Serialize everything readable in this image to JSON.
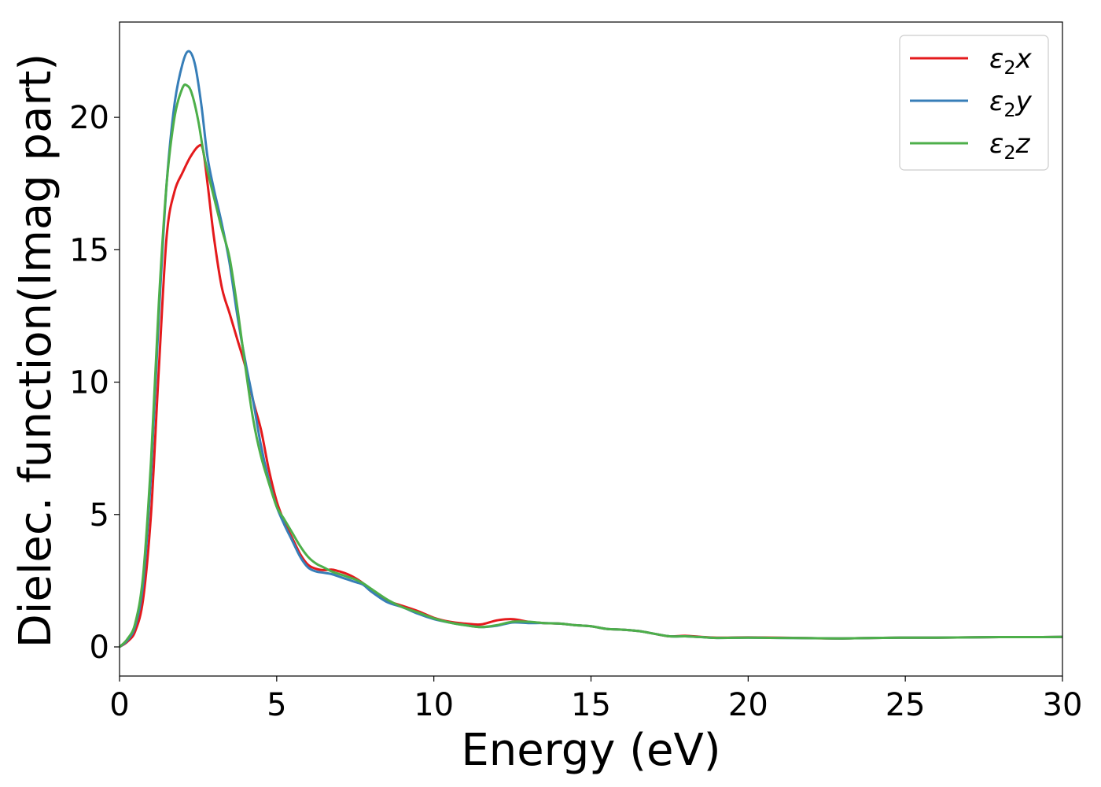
{
  "chart_data": {
    "type": "line",
    "title": "",
    "xlabel": "Energy (eV)",
    "ylabel": "Dielec. function(Imag part)",
    "xlim": [
      0,
      30
    ],
    "ylim": [
      -1.1,
      23.6
    ],
    "xticks": [
      0,
      5,
      10,
      15,
      20,
      25,
      30
    ],
    "yticks": [
      0,
      5,
      10,
      15,
      20
    ],
    "grid": false,
    "legend_position": "top-right",
    "series": [
      {
        "name": "ε2x",
        "legend_base": "ε",
        "legend_sub": "2",
        "legend_suffix": "x",
        "color": "#e41a1c",
        "x": [
          0,
          0.25,
          0.5,
          0.75,
          1.0,
          1.25,
          1.5,
          1.75,
          2.0,
          2.25,
          2.5,
          2.65,
          2.8,
          3.0,
          3.25,
          3.5,
          3.75,
          4.0,
          4.25,
          4.5,
          4.75,
          5.0,
          5.25,
          5.5,
          5.75,
          6.0,
          6.25,
          6.5,
          6.75,
          7.0,
          7.25,
          7.5,
          7.75,
          8.0,
          8.5,
          9.0,
          9.5,
          10.0,
          10.5,
          11.0,
          11.5,
          12.0,
          12.5,
          13.0,
          13.5,
          14.0,
          14.5,
          15.0,
          15.5,
          16.0,
          16.5,
          17.0,
          17.5,
          18.0,
          18.5,
          19.0,
          20.0,
          21.0,
          22.0,
          23.0,
          24.0,
          25.0,
          26.0,
          27.0,
          28.0,
          29.0,
          30.0
        ],
        "values": [
          0.0,
          0.2,
          0.6,
          1.8,
          5.0,
          10.5,
          15.5,
          17.2,
          17.9,
          18.5,
          18.9,
          18.8,
          17.5,
          15.5,
          13.6,
          12.6,
          11.6,
          10.6,
          9.3,
          8.2,
          6.7,
          5.5,
          4.7,
          4.1,
          3.5,
          3.1,
          2.95,
          2.9,
          2.92,
          2.85,
          2.75,
          2.6,
          2.4,
          2.1,
          1.75,
          1.55,
          1.35,
          1.1,
          0.95,
          0.88,
          0.85,
          1.0,
          1.05,
          0.95,
          0.9,
          0.88,
          0.82,
          0.78,
          0.68,
          0.65,
          0.6,
          0.5,
          0.4,
          0.42,
          0.38,
          0.35,
          0.36,
          0.35,
          0.33,
          0.32,
          0.34,
          0.35,
          0.35,
          0.36,
          0.37,
          0.37,
          0.38
        ]
      },
      {
        "name": "ε2y",
        "legend_base": "ε",
        "legend_sub": "2",
        "legend_suffix": "y",
        "color": "#377eb8",
        "x": [
          0,
          0.25,
          0.5,
          0.75,
          1.0,
          1.25,
          1.5,
          1.75,
          2.0,
          2.2,
          2.4,
          2.6,
          2.8,
          3.0,
          3.25,
          3.5,
          3.75,
          4.0,
          4.25,
          4.5,
          4.75,
          5.0,
          5.25,
          5.5,
          5.75,
          6.0,
          6.25,
          6.5,
          6.75,
          7.0,
          7.25,
          7.5,
          7.75,
          8.0,
          8.5,
          9.0,
          9.5,
          10.0,
          10.5,
          11.0,
          11.5,
          12.0,
          12.5,
          13.0,
          13.5,
          14.0,
          14.5,
          15.0,
          15.5,
          16.0,
          16.5,
          17.0,
          17.5,
          18.0,
          18.5,
          19.0,
          20.0,
          21.0,
          22.0,
          23.0,
          24.0,
          25.0,
          26.0,
          27.0,
          28.0,
          29.0,
          30.0
        ],
        "values": [
          0.0,
          0.25,
          0.8,
          2.4,
          6.5,
          12.5,
          17.5,
          20.5,
          22.0,
          22.5,
          22.0,
          20.5,
          18.5,
          17.3,
          16.0,
          14.5,
          12.5,
          10.8,
          9.3,
          7.6,
          6.3,
          5.3,
          4.6,
          4.0,
          3.4,
          3.0,
          2.85,
          2.8,
          2.75,
          2.65,
          2.55,
          2.45,
          2.35,
          2.1,
          1.7,
          1.5,
          1.25,
          1.05,
          0.92,
          0.82,
          0.75,
          0.8,
          0.92,
          0.9,
          0.9,
          0.88,
          0.82,
          0.78,
          0.68,
          0.65,
          0.6,
          0.5,
          0.4,
          0.4,
          0.37,
          0.34,
          0.35,
          0.34,
          0.33,
          0.32,
          0.34,
          0.35,
          0.35,
          0.36,
          0.37,
          0.37,
          0.38
        ]
      },
      {
        "name": "ε2z",
        "legend_base": "ε",
        "legend_sub": "2",
        "legend_suffix": "z",
        "color": "#4daf4a",
        "x": [
          0,
          0.25,
          0.5,
          0.75,
          1.0,
          1.25,
          1.5,
          1.75,
          2.0,
          2.15,
          2.3,
          2.5,
          2.7,
          3.0,
          3.25,
          3.5,
          3.75,
          4.0,
          4.25,
          4.5,
          4.75,
          5.0,
          5.25,
          5.5,
          5.75,
          6.0,
          6.25,
          6.5,
          6.75,
          7.0,
          7.25,
          7.5,
          7.75,
          8.0,
          8.5,
          9.0,
          9.5,
          10.0,
          10.5,
          11.0,
          11.5,
          12.0,
          12.5,
          13.0,
          13.5,
          14.0,
          14.5,
          15.0,
          15.5,
          16.0,
          16.5,
          17.0,
          17.5,
          18.0,
          18.5,
          19.0,
          20.0,
          21.0,
          22.0,
          23.0,
          24.0,
          25.0,
          26.0,
          27.0,
          28.0,
          29.0,
          30.0
        ],
        "values": [
          0.0,
          0.3,
          0.9,
          2.7,
          7.0,
          13.0,
          17.5,
          20.0,
          21.1,
          21.2,
          20.9,
          19.9,
          18.5,
          17.0,
          15.8,
          14.7,
          12.8,
          10.6,
          8.6,
          7.2,
          6.2,
          5.3,
          4.8,
          4.3,
          3.8,
          3.4,
          3.15,
          3.0,
          2.85,
          2.75,
          2.65,
          2.55,
          2.4,
          2.2,
          1.8,
          1.5,
          1.3,
          1.08,
          0.92,
          0.82,
          0.75,
          0.82,
          0.95,
          0.95,
          0.9,
          0.88,
          0.82,
          0.78,
          0.68,
          0.65,
          0.6,
          0.5,
          0.4,
          0.4,
          0.37,
          0.34,
          0.35,
          0.34,
          0.33,
          0.32,
          0.34,
          0.35,
          0.35,
          0.36,
          0.37,
          0.37,
          0.38
        ]
      }
    ]
  }
}
